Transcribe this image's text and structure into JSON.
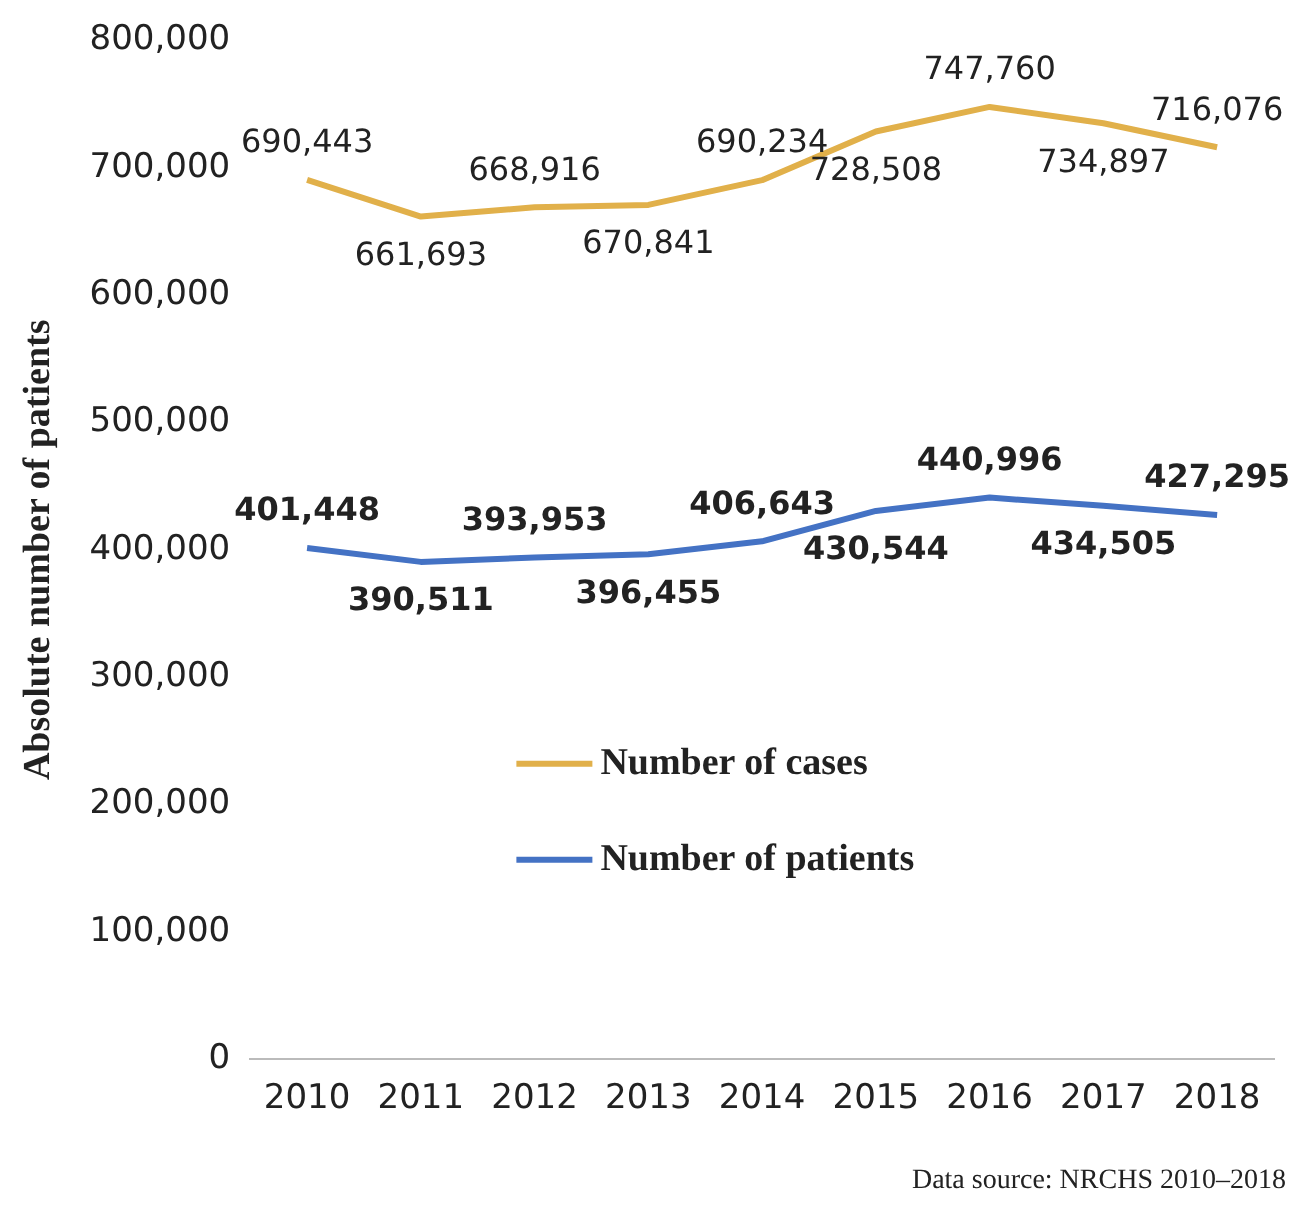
{
  "chart_data": {
    "type": "line",
    "ylabel": "Absolute number of patients",
    "categories": [
      "2010",
      "2011",
      "2012",
      "2013",
      "2014",
      "2015",
      "2016",
      "2017",
      "2018"
    ],
    "series": [
      {
        "name": "Number of cases",
        "color": "#e1b04a",
        "values": [
          690443,
          661693,
          668916,
          670841,
          690234,
          728508,
          747760,
          734897,
          716076
        ],
        "value_labels": [
          "690,443",
          "661,693",
          "668,916",
          "670,841",
          "690,234",
          "728,508",
          "747,760",
          "734,897",
          "716,076"
        ]
      },
      {
        "name": "Number of patients",
        "color": "#4472c4",
        "values": [
          401448,
          390511,
          393953,
          396455,
          406643,
          430544,
          440996,
          434505,
          427295
        ],
        "value_labels": [
          "401,448",
          "390,511",
          "393,953",
          "396,455",
          "406,643",
          "430,544",
          "440,996",
          "434,505",
          "427,295"
        ]
      }
    ],
    "ylim": [
      0,
      800000
    ],
    "yticks": [
      {
        "value": 0,
        "label": "0"
      },
      {
        "value": 100000,
        "label": "100,000"
      },
      {
        "value": 200000,
        "label": "200,000"
      },
      {
        "value": 300000,
        "label": "300,000"
      },
      {
        "value": 400000,
        "label": "400,000"
      },
      {
        "value": 500000,
        "label": "500,000"
      },
      {
        "value": 600000,
        "label": "600,000"
      },
      {
        "value": 700000,
        "label": "700,000"
      },
      {
        "value": 800000,
        "label": "800,000"
      }
    ],
    "grid": false,
    "legend": "bottom",
    "marker": "none",
    "line_style": "solid",
    "annotations": [
      "Data source: NRCHS 2010–2018"
    ]
  }
}
